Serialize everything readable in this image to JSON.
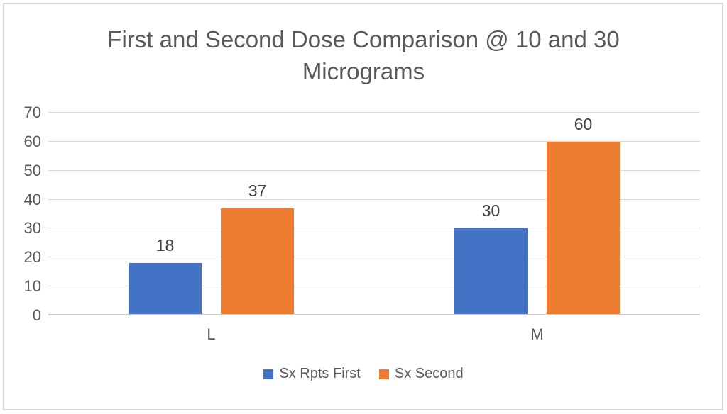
{
  "chart": {
    "title_line1": "First and Second Dose Comparison @ 10 and 30",
    "title_line2": "Micrograms"
  },
  "chart_data": {
    "type": "bar",
    "title": "First and Second Dose Comparison @ 10 and 30 Micrograms",
    "categories": [
      "L",
      "M"
    ],
    "series": [
      {
        "name": "Sx Rpts First",
        "color": "#4472c4",
        "values": [
          18,
          30
        ]
      },
      {
        "name": "Sx Second",
        "color": "#ed7d31",
        "values": [
          37,
          60
        ]
      }
    ],
    "xlabel": "",
    "ylabel": "",
    "ylim": [
      0,
      70
    ],
    "yticks": [
      0,
      10,
      20,
      30,
      40,
      50,
      60,
      70
    ],
    "grid": true,
    "data_labels_shown": true,
    "legend_position": "bottom",
    "colors": {
      "title_text": "#595959",
      "axis_text": "#595959",
      "data_label_text": "#404040",
      "gridline": "#d9d9d9",
      "axis_line": "#c9c9c9",
      "chart_border": "#d9d9d9",
      "background": "#ffffff"
    }
  }
}
